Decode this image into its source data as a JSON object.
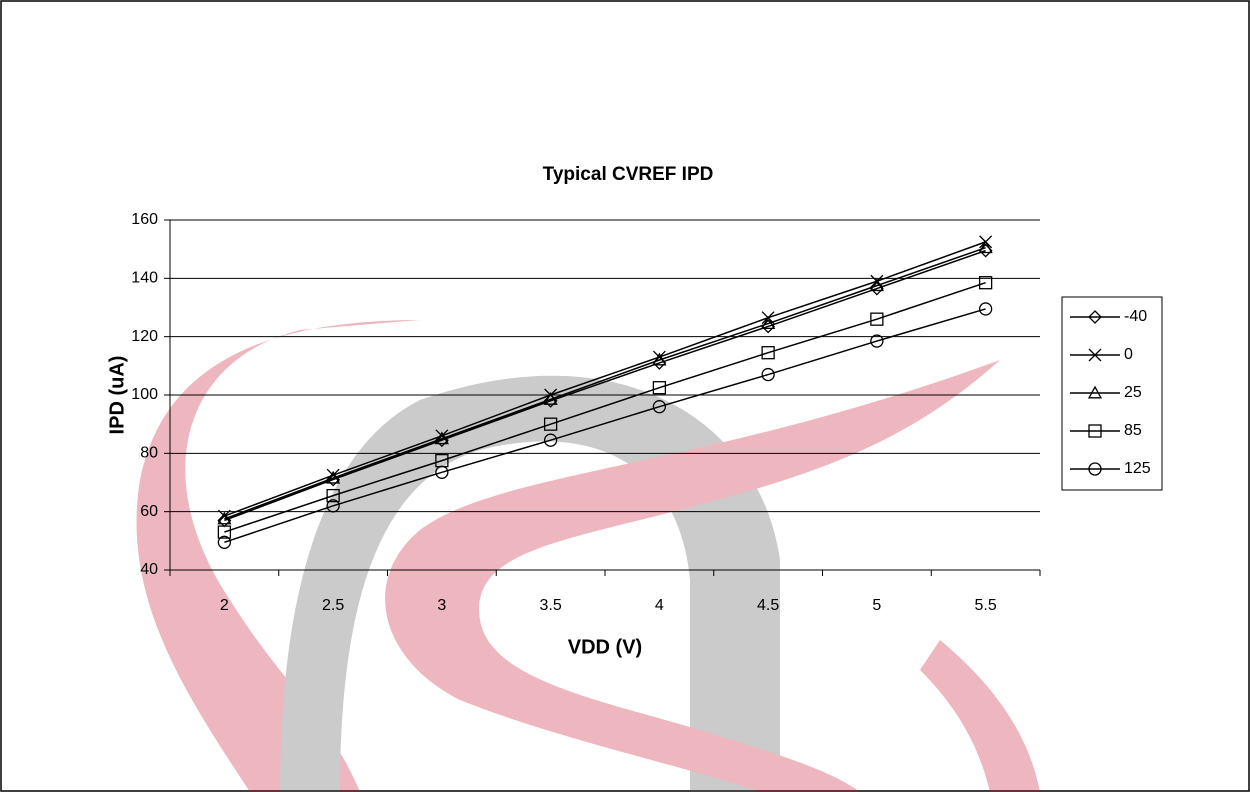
{
  "chart_data": {
    "type": "line",
    "title": "Typical CVREF IPD",
    "x_label": "VDD (V)",
    "y_label": "IPD (uA)",
    "categories": [
      "2",
      "2.5",
      "3",
      "3.5",
      "4",
      "4.5",
      "5",
      "5.5"
    ],
    "ylim": [
      40,
      160
    ],
    "yticks": [
      40,
      60,
      80,
      100,
      120,
      140,
      160
    ],
    "grid": true,
    "legend": "right",
    "series": [
      {
        "name": "-40",
        "color": "#000000",
        "marker": "diamond",
        "values": [
          57,
          71,
          84.5,
          98,
          111,
          123.5,
          136.5,
          149.5
        ]
      },
      {
        "name": "0",
        "color": "#000000",
        "marker": "x",
        "values": [
          58.5,
          72.5,
          86,
          100,
          113,
          126.5,
          139,
          152.5
        ]
      },
      {
        "name": "25",
        "color": "#000000",
        "marker": "triangle",
        "values": [
          57.5,
          71.5,
          85,
          98.5,
          112,
          124.5,
          137.5,
          150.5
        ]
      },
      {
        "name": "85",
        "color": "#000000",
        "marker": "square",
        "values": [
          53,
          65.5,
          77.5,
          90,
          102.5,
          114.5,
          126,
          138.5
        ]
      },
      {
        "name": "125",
        "color": "#000000",
        "marker": "circle",
        "values": [
          49.5,
          62,
          73.5,
          84.5,
          96,
          107,
          118.5,
          129.5
        ]
      }
    ]
  }
}
